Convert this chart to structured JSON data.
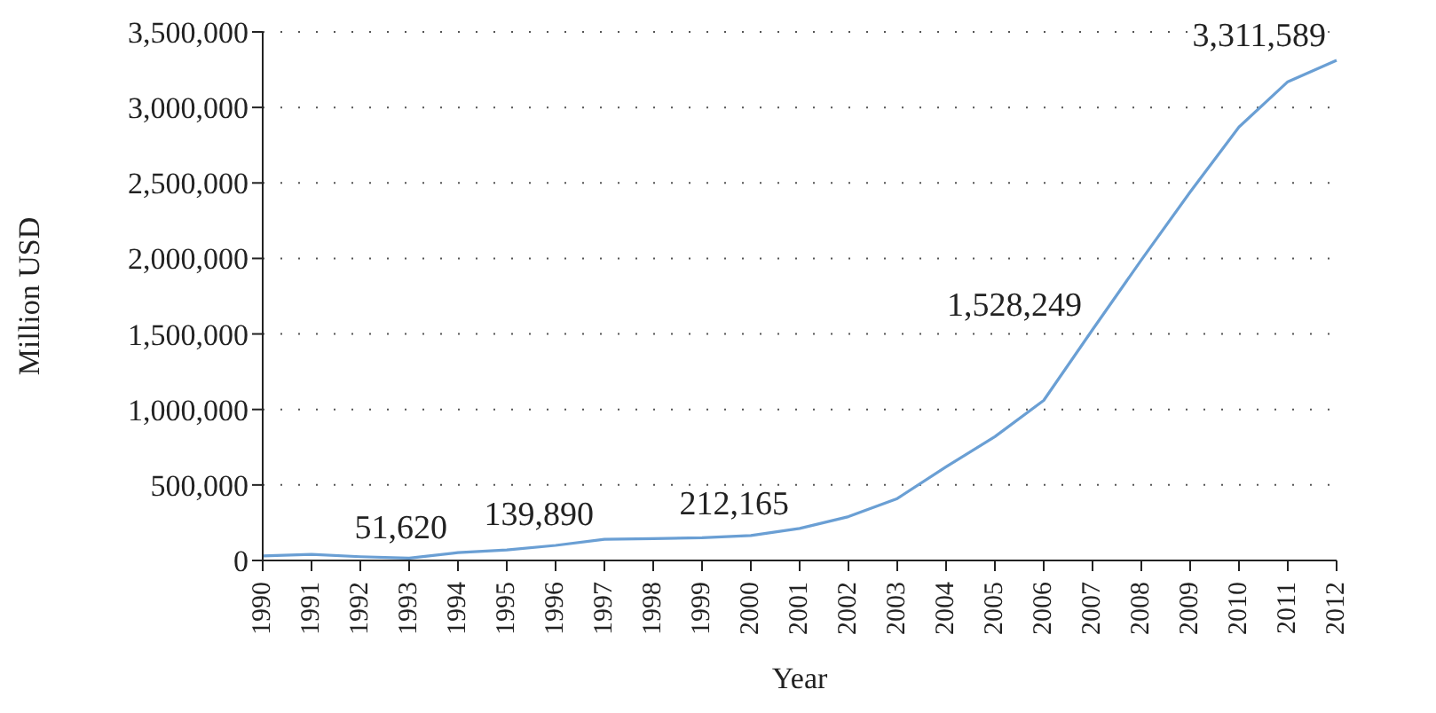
{
  "chart_data": {
    "type": "line",
    "xlabel": "Year",
    "ylabel": "Million USD",
    "categories": [
      "1990",
      "1991",
      "1992",
      "1993",
      "1994",
      "1995",
      "1996",
      "1997",
      "1998",
      "1999",
      "2000",
      "2001",
      "2002",
      "2003",
      "2004",
      "2005",
      "2006",
      "2007",
      "2008",
      "2009",
      "2010",
      "2011",
      "2012"
    ],
    "series": [
      {
        "color": "#6a9fd4",
        "values": [
          30000,
          40000,
          25000,
          15000,
          51620,
          70000,
          100000,
          139890,
          145000,
          150000,
          165000,
          212165,
          290000,
          410000,
          620000,
          820000,
          1060000,
          1528249,
          1990000,
          2440000,
          2870000,
          3170000,
          3311589
        ],
        "value_labels": [
          null,
          null,
          null,
          null,
          "51,620",
          null,
          null,
          "139,890",
          null,
          null,
          null,
          "212,165",
          null,
          null,
          null,
          null,
          null,
          "1,528,249",
          null,
          null,
          null,
          null,
          "3,311,589"
        ]
      }
    ],
    "ylim": [
      0,
      3500000
    ],
    "yticks": [
      {
        "value": 0,
        "label": "0"
      },
      {
        "value": 500000,
        "label": "500,000"
      },
      {
        "value": 1000000,
        "label": "1,000,000"
      },
      {
        "value": 1500000,
        "label": "1,500,000"
      },
      {
        "value": 2000000,
        "label": "2,000,000"
      },
      {
        "value": 2500000,
        "label": "2,500,000"
      },
      {
        "value": 3000000,
        "label": "3,000,000"
      },
      {
        "value": 3500000,
        "label": "3,500,000"
      }
    ],
    "grid": "y",
    "legend": false,
    "marker": "none",
    "line_style": "solid"
  }
}
